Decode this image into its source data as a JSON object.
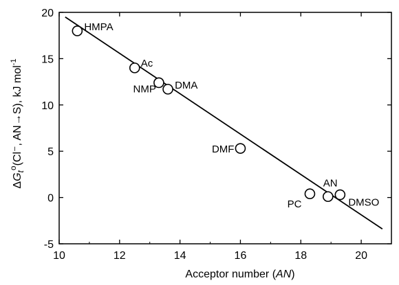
{
  "chart_data": {
    "type": "scatter",
    "xlabel": "Acceptor number (AN)",
    "ylabel": "ΔG_t°(Cl⁻, AN→S), kJ mol⁻¹",
    "xlim": [
      10,
      21
    ],
    "ylim": [
      -5,
      20
    ],
    "xticks": [
      10,
      12,
      14,
      16,
      18,
      20
    ],
    "yticks": [
      -5,
      0,
      5,
      10,
      15,
      20
    ],
    "grid": false,
    "points": [
      {
        "label": "HMPA",
        "x": 10.6,
        "y": 18.0
      },
      {
        "label": "Ac",
        "x": 12.5,
        "y": 14.0
      },
      {
        "label": "NMP",
        "x": 13.3,
        "y": 12.4
      },
      {
        "label": "DMA",
        "x": 13.6,
        "y": 11.7
      },
      {
        "label": "DMF",
        "x": 16.0,
        "y": 5.3
      },
      {
        "label": "PC",
        "x": 18.3,
        "y": 0.4
      },
      {
        "label": "AN",
        "x": 18.9,
        "y": 0.1
      },
      {
        "label": "DMSO",
        "x": 19.3,
        "y": 0.3
      }
    ],
    "fit_line": {
      "x": [
        10.2,
        20.7
      ],
      "y": [
        19.5,
        -3.4
      ]
    }
  }
}
